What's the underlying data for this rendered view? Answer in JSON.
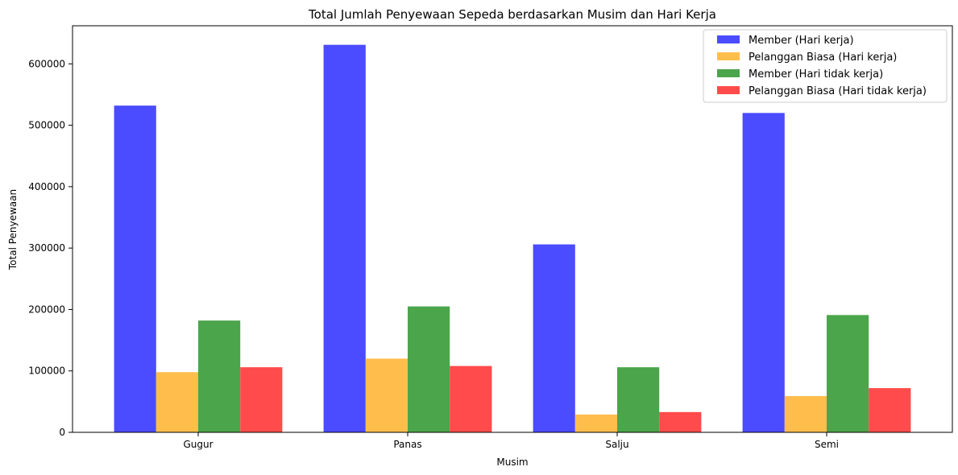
{
  "chart_data": {
    "type": "bar",
    "title": "Total Jumlah Penyewaan Sepeda berdasarkan Musim dan Hari Kerja",
    "xlabel": "Musim",
    "ylabel": "Total Penyewaan",
    "categories": [
      "Gugur",
      "Panas",
      "Salju",
      "Semi"
    ],
    "ylim": [
      0,
      662000
    ],
    "yticks": [
      0,
      100000,
      200000,
      300000,
      400000,
      500000,
      600000
    ],
    "grid": false,
    "legend_position": "top-right",
    "series": [
      {
        "name": "Member (Hari kerja)",
        "color": "#4b4bff",
        "values": [
          532000,
          631000,
          306000,
          520000
        ]
      },
      {
        "name": "Pelanggan Biasa (Hari kerja)",
        "color": "#ffbe4b",
        "values": [
          98000,
          120000,
          29000,
          59000
        ]
      },
      {
        "name": "Member (Hari tidak kerja)",
        "color": "#4ba54b",
        "values": [
          182000,
          205000,
          106000,
          191000
        ]
      },
      {
        "name": "Pelanggan Biasa (Hari tidak kerja)",
        "color": "#ff4b4b",
        "values": [
          106000,
          108000,
          33000,
          72000
        ]
      }
    ]
  }
}
